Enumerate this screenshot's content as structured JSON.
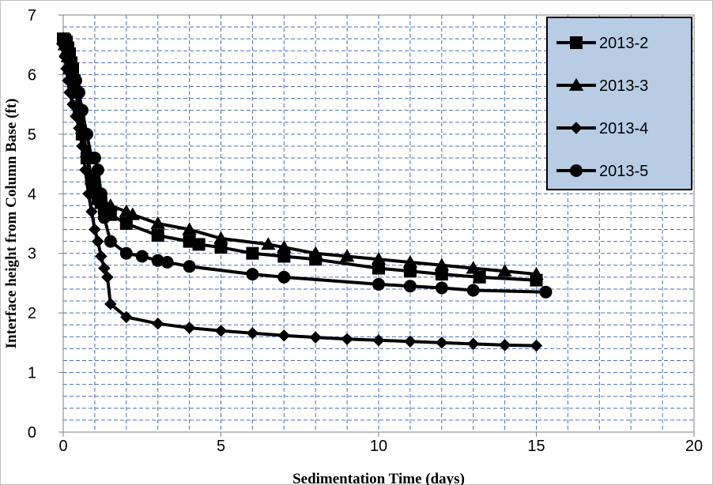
{
  "chart_data": {
    "type": "line",
    "xlabel": "Sedimentation Time (days)",
    "ylabel": "Interface height from Column Base (ft)",
    "xlim": [
      0,
      20
    ],
    "ylim": [
      0,
      7
    ],
    "x_ticks": [
      "0",
      "5",
      "10",
      "15",
      "20"
    ],
    "y_ticks": [
      "0",
      "1",
      "2",
      "3",
      "4",
      "5",
      "6",
      "7"
    ],
    "grid": "dashed minor horizontal and vertical gridlines",
    "legend_position": "top-right",
    "series": [
      {
        "name": "2013-2",
        "marker": "square",
        "x": [
          0.0,
          0.05,
          0.1,
          0.15,
          0.2,
          0.25,
          0.3,
          0.35,
          0.4,
          0.5,
          0.6,
          0.75,
          0.9,
          1.0,
          1.1,
          1.2,
          1.3,
          1.5,
          2.0,
          3.0,
          4.0,
          4.3,
          5.0,
          6.0,
          7.0,
          8.0,
          10.0,
          11.0,
          12.0,
          13.2,
          15.0
        ],
        "y": [
          6.6,
          6.58,
          6.55,
          6.45,
          6.35,
          6.2,
          6.1,
          5.9,
          5.7,
          5.35,
          5.0,
          4.6,
          4.25,
          4.05,
          3.95,
          3.85,
          3.75,
          3.65,
          3.5,
          3.3,
          3.2,
          3.15,
          3.1,
          3.0,
          2.95,
          2.9,
          2.75,
          2.7,
          2.65,
          2.6,
          2.55
        ]
      },
      {
        "name": "2013-3",
        "marker": "triangle",
        "x": [
          0.0,
          0.05,
          0.1,
          0.15,
          0.2,
          0.3,
          0.4,
          0.5,
          0.6,
          0.75,
          0.9,
          1.0,
          1.1,
          1.3,
          1.5,
          2.0,
          2.2,
          3.0,
          4.0,
          5.0,
          6.5,
          7.0,
          8.0,
          9.0,
          10.0,
          11.0,
          12.0,
          13.0,
          14.0,
          15.0
        ],
        "y": [
          6.6,
          6.5,
          6.4,
          6.3,
          6.1,
          5.95,
          5.8,
          5.5,
          5.1,
          4.7,
          4.25,
          4.0,
          3.9,
          3.85,
          3.8,
          3.7,
          3.65,
          3.5,
          3.4,
          3.25,
          3.15,
          3.1,
          3.0,
          2.95,
          2.9,
          2.85,
          2.8,
          2.75,
          2.7,
          2.65
        ]
      },
      {
        "name": "2013-4",
        "marker": "diamond",
        "x": [
          0.0,
          0.05,
          0.1,
          0.15,
          0.2,
          0.3,
          0.4,
          0.5,
          0.6,
          0.7,
          0.8,
          0.9,
          1.0,
          1.1,
          1.2,
          1.3,
          1.4,
          1.5,
          2.0,
          3.0,
          4.0,
          5.0,
          6.0,
          7.0,
          8.0,
          9.0,
          10.0,
          11.0,
          12.0,
          13.0,
          14.0,
          15.0
        ],
        "y": [
          6.5,
          6.3,
          6.1,
          5.9,
          5.7,
          5.5,
          5.3,
          5.1,
          4.8,
          4.4,
          4.0,
          3.7,
          3.4,
          3.2,
          2.95,
          2.75,
          2.6,
          2.15,
          1.93,
          1.82,
          1.75,
          1.7,
          1.66,
          1.62,
          1.59,
          1.56,
          1.54,
          1.52,
          1.5,
          1.48,
          1.46,
          1.45
        ]
      },
      {
        "name": "2013-5",
        "marker": "circle",
        "x": [
          0.0,
          0.05,
          0.1,
          0.15,
          0.2,
          0.25,
          0.3,
          0.4,
          0.5,
          0.6,
          0.75,
          0.9,
          1.0,
          1.1,
          1.2,
          1.3,
          1.5,
          2.0,
          2.5,
          3.0,
          3.3,
          4.0,
          6.0,
          7.0,
          10.0,
          11.0,
          12.0,
          13.0,
          15.3
        ],
        "y": [
          6.55,
          6.5,
          6.45,
          6.35,
          6.25,
          6.15,
          6.05,
          5.9,
          5.7,
          5.4,
          5.0,
          4.6,
          4.6,
          4.4,
          4.0,
          3.6,
          3.2,
          3.0,
          2.95,
          2.88,
          2.85,
          2.78,
          2.65,
          2.6,
          2.48,
          2.45,
          2.42,
          2.38,
          2.35
        ]
      }
    ]
  }
}
